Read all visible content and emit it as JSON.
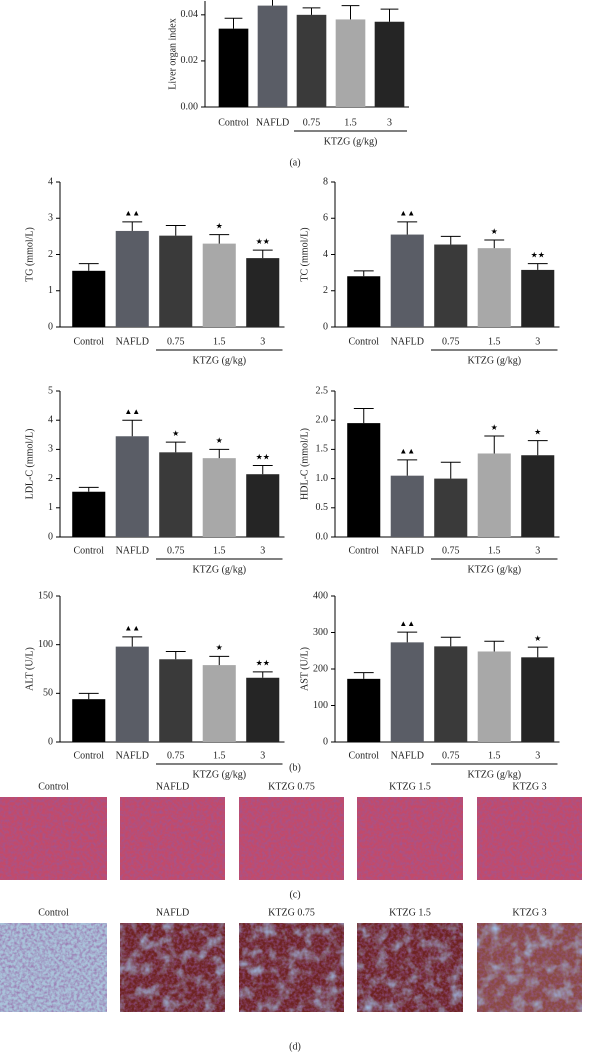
{
  "chart_data": [
    {
      "type": "bar",
      "y_label": "Liver organ index",
      "categories": [
        "Control",
        "NAFLD",
        "0.75",
        "1.5",
        "3"
      ],
      "group_label": "KTZG (g/kg)",
      "caption": "(a)",
      "values": [
        0.034,
        0.044,
        0.04,
        0.038,
        0.037
      ],
      "errors": [
        0.0045,
        0.004,
        0.003,
        0.006,
        0.0055
      ],
      "markers": [
        null,
        null,
        null,
        null,
        null
      ],
      "colors": [
        "#000000",
        "#5a5d66",
        "#3a3a3a",
        "#a8a8a8",
        "#252525"
      ],
      "ylim": [
        0,
        0.046
      ],
      "yticks": [
        {
          "value": 0,
          "label": "0.00"
        },
        {
          "value": 0.02,
          "label": "0.02"
        },
        {
          "value": 0.04,
          "label": "0.04"
        }
      ]
    },
    {
      "type": "bar",
      "y_label": "TG (mmol/L)",
      "categories": [
        "Control",
        "NAFLD",
        "0.75",
        "1.5",
        "3"
      ],
      "group_label": "KTZG (g/kg)",
      "values": [
        1.55,
        2.65,
        2.52,
        2.3,
        1.9
      ],
      "errors": [
        0.2,
        0.25,
        0.28,
        0.25,
        0.22
      ],
      "markers": [
        null,
        "▲▲",
        null,
        "★",
        "★★"
      ],
      "colors": [
        "#000000",
        "#5a5d66",
        "#3a3a3a",
        "#a8a8a8",
        "#252525"
      ],
      "ylim": [
        0,
        4
      ],
      "yticks": [
        0,
        1,
        2,
        3,
        4
      ]
    },
    {
      "type": "bar",
      "y_label": "TC (mmol/L)",
      "categories": [
        "Control",
        "NAFLD",
        "0.75",
        "1.5",
        "3"
      ],
      "group_label": "KTZG (g/kg)",
      "values": [
        2.8,
        5.1,
        4.55,
        4.35,
        3.15
      ],
      "errors": [
        0.3,
        0.7,
        0.45,
        0.45,
        0.35
      ],
      "markers": [
        null,
        "▲▲",
        null,
        "★",
        "★★"
      ],
      "colors": [
        "#000000",
        "#5a5d66",
        "#3a3a3a",
        "#a8a8a8",
        "#252525"
      ],
      "ylim": [
        0,
        8
      ],
      "yticks": [
        0,
        2,
        4,
        6,
        8
      ]
    },
    {
      "type": "bar",
      "y_label": "LDL-C (mmol/L)",
      "categories": [
        "Control",
        "NAFLD",
        "0.75",
        "1.5",
        "3"
      ],
      "group_label": "KTZG (g/kg)",
      "values": [
        1.55,
        3.45,
        2.9,
        2.7,
        2.15
      ],
      "errors": [
        0.15,
        0.55,
        0.35,
        0.3,
        0.3
      ],
      "markers": [
        null,
        "▲▲",
        "★",
        "★",
        "★★"
      ],
      "colors": [
        "#000000",
        "#5a5d66",
        "#3a3a3a",
        "#a8a8a8",
        "#252525"
      ],
      "ylim": [
        0,
        5
      ],
      "yticks": [
        0,
        1,
        2,
        3,
        4,
        5
      ]
    },
    {
      "type": "bar",
      "y_label": "HDL-C (mmol/L)",
      "categories": [
        "Control",
        "NAFLD",
        "0.75",
        "1.5",
        "3"
      ],
      "group_label": "KTZG (g/kg)",
      "values": [
        1.95,
        1.05,
        1.0,
        1.43,
        1.4
      ],
      "errors": [
        0.25,
        0.27,
        0.28,
        0.3,
        0.25
      ],
      "markers": [
        null,
        "▲▲",
        null,
        "★",
        "★"
      ],
      "colors": [
        "#000000",
        "#5a5d66",
        "#3a3a3a",
        "#a8a8a8",
        "#252525"
      ],
      "ylim": [
        0,
        2.5
      ],
      "yticks": [
        {
          "value": 0,
          "label": "0.0"
        },
        0.5,
        {
          "value": 1,
          "label": "1.0"
        },
        1.5,
        {
          "value": 2,
          "label": "2.0"
        },
        2.5
      ]
    },
    {
      "type": "bar",
      "y_label": "ALT (U/L)",
      "categories": [
        "Control",
        "NAFLD",
        "0.75",
        "1.5",
        "3"
      ],
      "group_label": "KTZG (g/kg)",
      "values": [
        44,
        98,
        85,
        79,
        66
      ],
      "errors": [
        6,
        10,
        8,
        9,
        6
      ],
      "markers": [
        null,
        "▲▲",
        null,
        "★",
        "★★"
      ],
      "colors": [
        "#000000",
        "#5a5d66",
        "#3a3a3a",
        "#a8a8a8",
        "#252525"
      ],
      "ylim": [
        0,
        150
      ],
      "yticks": [
        0,
        50,
        100,
        150
      ]
    },
    {
      "type": "bar",
      "y_label": "AST (U/L)",
      "categories": [
        "Control",
        "NAFLD",
        "0.75",
        "1.5",
        "3"
      ],
      "group_label": "KTZG (g/kg)",
      "caption": "(b)",
      "values": [
        173,
        273,
        262,
        248,
        232
      ],
      "errors": [
        17,
        28,
        25,
        28,
        28
      ],
      "markers": [
        null,
        "▲▲",
        null,
        null,
        "★"
      ],
      "colors": [
        "#000000",
        "#5a5d66",
        "#3a3a3a",
        "#a8a8a8",
        "#252525"
      ],
      "ylim": [
        0,
        400
      ],
      "yticks": [
        0,
        100,
        200,
        300,
        400
      ]
    }
  ],
  "panels": [
    {
      "labels": [
        "Control",
        "NAFLD",
        "KTZG 0.75",
        "KTZG 1.5",
        "KTZG 3"
      ],
      "caption": "(c)"
    },
    {
      "labels": [
        "Control",
        "NAFLD",
        "KTZG 0.75",
        "KTZG 1.5",
        "KTZG 3"
      ],
      "caption": "(d)"
    }
  ]
}
